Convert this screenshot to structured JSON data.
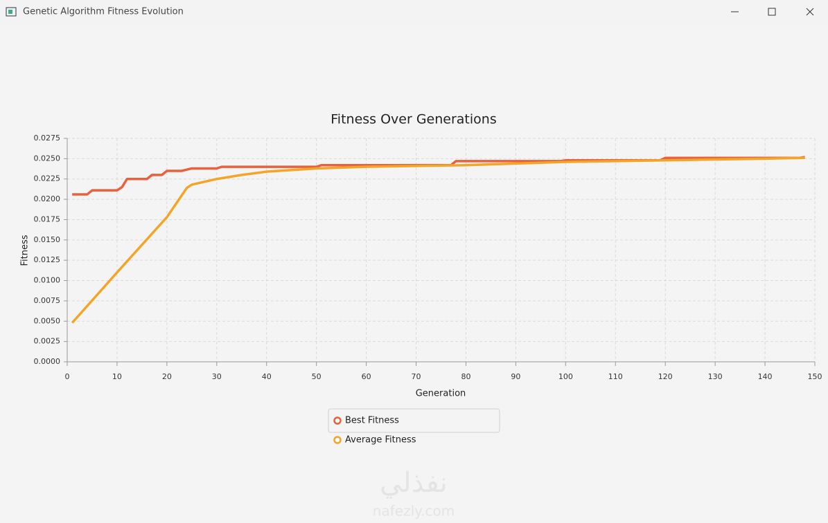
{
  "window": {
    "title": "Genetic Algorithm Fitness Evolution"
  },
  "watermark": {
    "text": "نفذلي",
    "url": "nafezly.com"
  },
  "chart_data": {
    "type": "line",
    "title": "Fitness Over Generations",
    "x_label": "Generation",
    "y_label": "Fitness",
    "xlim": [
      0,
      150
    ],
    "xticks": [
      0,
      10,
      20,
      30,
      40,
      50,
      60,
      70,
      80,
      90,
      100,
      110,
      120,
      130,
      140,
      150
    ],
    "ylim": [
      0,
      0.0275
    ],
    "yticks": [
      {
        "value": 0,
        "label": "0.0000"
      },
      {
        "value": 0.0025,
        "label": "0.0025"
      },
      {
        "value": 0.005,
        "label": "0.0050"
      },
      {
        "value": 0.0075,
        "label": "0.0075"
      },
      {
        "value": 0.01,
        "label": "0.0100"
      },
      {
        "value": 0.0125,
        "label": "0.0125"
      },
      {
        "value": 0.015,
        "label": "0.0150"
      },
      {
        "value": 0.0175,
        "label": "0.0175"
      },
      {
        "value": 0.02,
        "label": "0.0200"
      },
      {
        "value": 0.0225,
        "label": "0.0225"
      },
      {
        "value": 0.025,
        "label": "0.0250"
      },
      {
        "value": 0.0275,
        "label": "0.0275"
      }
    ],
    "grid": true,
    "series": [
      {
        "name": "Best Fitness",
        "color": "#e8603c",
        "x": [
          1,
          4,
          5,
          10,
          11,
          12,
          16,
          17,
          19,
          20,
          23,
          25,
          30,
          31,
          50,
          51,
          77,
          78,
          99,
          100,
          119,
          120,
          147,
          148
        ],
        "values": [
          0.0206,
          0.0206,
          0.0211,
          0.0211,
          0.0215,
          0.0225,
          0.0225,
          0.023,
          0.023,
          0.0235,
          0.0235,
          0.0238,
          0.0238,
          0.024,
          0.024,
          0.0242,
          0.0242,
          0.0247,
          0.0247,
          0.0248,
          0.0248,
          0.0251,
          0.0251,
          0.0252
        ]
      },
      {
        "name": "Average Fitness",
        "color": "#f3a528",
        "x": [
          1,
          10,
          20,
          24,
          25,
          30,
          35,
          40,
          50,
          60,
          70,
          80,
          90,
          100,
          110,
          120,
          130,
          140,
          148
        ],
        "values": [
          0.0048,
          0.011,
          0.0178,
          0.0214,
          0.0218,
          0.0225,
          0.023,
          0.0234,
          0.0238,
          0.024,
          0.0241,
          0.0242,
          0.0244,
          0.0246,
          0.0247,
          0.0248,
          0.0249,
          0.025,
          0.0251
        ]
      }
    ]
  }
}
